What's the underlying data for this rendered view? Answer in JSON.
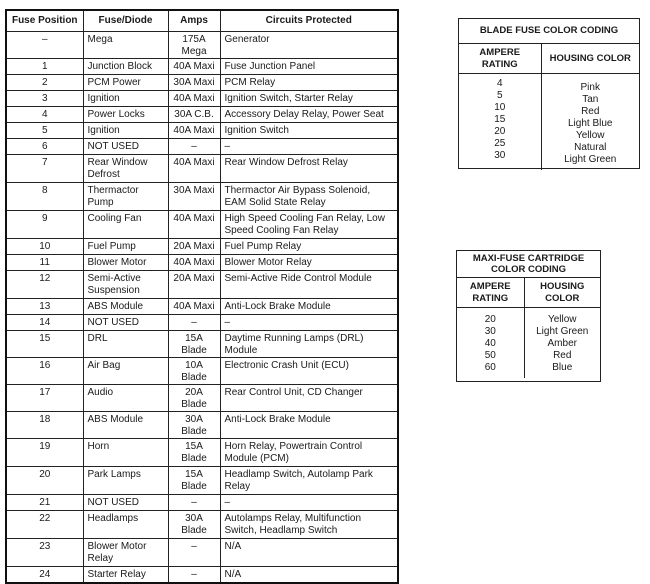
{
  "main_table": {
    "headers": [
      "Fuse Position",
      "Fuse/Diode",
      "Amps",
      "Circuits Protected"
    ],
    "rows": [
      {
        "pos": "–",
        "fuse": "Mega",
        "amps": "175A Mega",
        "circuits": "Generator"
      },
      {
        "pos": "1",
        "fuse": "Junction Block",
        "amps": "40A Maxi",
        "circuits": "Fuse Junction Panel"
      },
      {
        "pos": "2",
        "fuse": "PCM Power",
        "amps": "30A Maxi",
        "circuits": "PCM Relay"
      },
      {
        "pos": "3",
        "fuse": "Ignition",
        "amps": "40A Maxi",
        "circuits": "Ignition Switch, Starter Relay"
      },
      {
        "pos": "4",
        "fuse": "Power Locks",
        "amps": "30A C.B.",
        "circuits": "Accessory Delay Relay, Power Seat"
      },
      {
        "pos": "5",
        "fuse": "Ignition",
        "amps": "40A Maxi",
        "circuits": "Ignition Switch"
      },
      {
        "pos": "6",
        "fuse": "NOT USED",
        "amps": "–",
        "circuits": "–"
      },
      {
        "pos": "7",
        "fuse": "Rear Window Defrost",
        "amps": "40A Maxi",
        "circuits": "Rear Window Defrost Relay"
      },
      {
        "pos": "8",
        "fuse": "Thermactor Pump",
        "amps": "30A Maxi",
        "circuits": "Thermactor Air Bypass Solenoid, EAM Solid State Relay"
      },
      {
        "pos": "9",
        "fuse": "Cooling Fan",
        "amps": "40A Maxi",
        "circuits": "High Speed Cooling Fan Relay, Low Speed Cooling Fan Relay"
      },
      {
        "pos": "10",
        "fuse": "Fuel Pump",
        "amps": "20A Maxi",
        "circuits": "Fuel Pump Relay"
      },
      {
        "pos": "11",
        "fuse": "Blower Motor",
        "amps": "40A Maxi",
        "circuits": "Blower Motor Relay"
      },
      {
        "pos": "12",
        "fuse": "Semi-Active Suspension",
        "amps": "20A Maxi",
        "circuits": "Semi-Active Ride Control Module"
      },
      {
        "pos": "13",
        "fuse": "ABS Module",
        "amps": "40A Maxi",
        "circuits": "Anti-Lock Brake Module"
      },
      {
        "pos": "14",
        "fuse": "NOT USED",
        "amps": "–",
        "circuits": "–"
      },
      {
        "pos": "15",
        "fuse": "DRL",
        "amps": "15A Blade",
        "circuits": "Daytime Running Lamps (DRL) Module"
      },
      {
        "pos": "16",
        "fuse": "Air Bag",
        "amps": "10A Blade",
        "circuits": "Electronic Crash Unit (ECU)"
      },
      {
        "pos": "17",
        "fuse": "Audio",
        "amps": "20A Blade",
        "circuits": "Rear Control Unit, CD Changer"
      },
      {
        "pos": "18",
        "fuse": "ABS Module",
        "amps": "30A Blade",
        "circuits": "Anti-Lock Brake Module"
      },
      {
        "pos": "19",
        "fuse": "Horn",
        "amps": "15A Blade",
        "circuits": "Horn Relay, Powertrain Control Module (PCM)"
      },
      {
        "pos": "20",
        "fuse": "Park Lamps",
        "amps": "15A Blade",
        "circuits": "Headlamp Switch, Autolamp Park Relay"
      },
      {
        "pos": "21",
        "fuse": "NOT USED",
        "amps": "–",
        "circuits": "–"
      },
      {
        "pos": "22",
        "fuse": "Headlamps",
        "amps": "30A Blade",
        "circuits": "Autolamps Relay, Multifunction Switch, Headlamp Switch"
      },
      {
        "pos": "23",
        "fuse": "Blower Motor Relay",
        "amps": "–",
        "circuits": "N/A"
      },
      {
        "pos": "24",
        "fuse": "Starter Relay",
        "amps": "–",
        "circuits": "N/A"
      }
    ]
  },
  "blade_table": {
    "title": "BLADE FUSE COLOR CODING",
    "col1": "AMPERE RATING",
    "col2": "HOUSING COLOR",
    "ratings": "4\n5\n10\n15\n20\n25\n30",
    "colors": "Pink\nTan\nRed\nLight Blue\nYellow\nNatural\nLight Green"
  },
  "maxi_table": {
    "title": "MAXI-FUSE CARTRIDGE COLOR CODING",
    "col1": "AMPERE RATING",
    "col2": "HOUSING COLOR",
    "ratings": "20\n30\n40\n50\n60",
    "colors": "Yellow\nLight Green\nAmber\nRed\nBlue"
  }
}
